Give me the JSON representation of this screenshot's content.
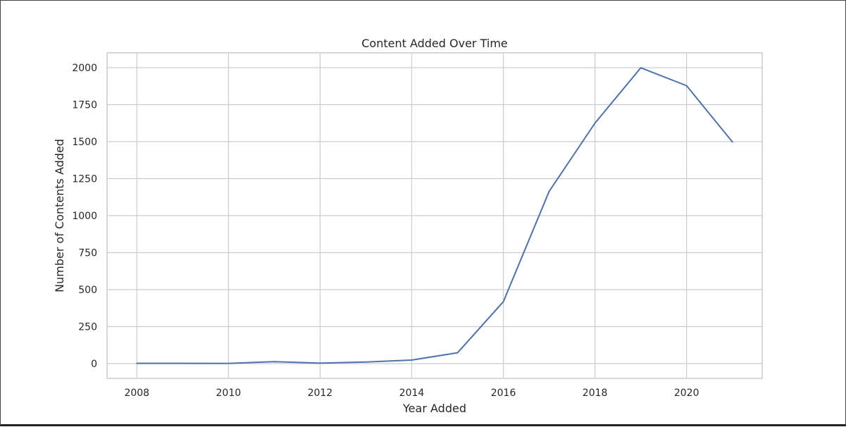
{
  "chart_data": {
    "type": "line",
    "title": "Content Added Over Time",
    "xlabel": "Year Added",
    "ylabel": "Number of Contents Added",
    "xlim": [
      2007.35,
      2021.65
    ],
    "ylim": [
      -100,
      2100
    ],
    "xticks": [
      2008,
      2010,
      2012,
      2014,
      2016,
      2018,
      2020
    ],
    "yticks": [
      0,
      250,
      500,
      750,
      1000,
      1250,
      1500,
      1750,
      2000
    ],
    "grid": true,
    "legend": "none",
    "series": [
      {
        "color": "#4c72b0",
        "x": [
          2008,
          2009,
          2010,
          2011,
          2012,
          2013,
          2014,
          2015,
          2016,
          2017,
          2018,
          2019,
          2020,
          2021
        ],
        "y": [
          2,
          2,
          1,
          13,
          3,
          11,
          24,
          73,
          418,
          1164,
          1625,
          1999,
          1878,
          1498
        ]
      }
    ]
  }
}
